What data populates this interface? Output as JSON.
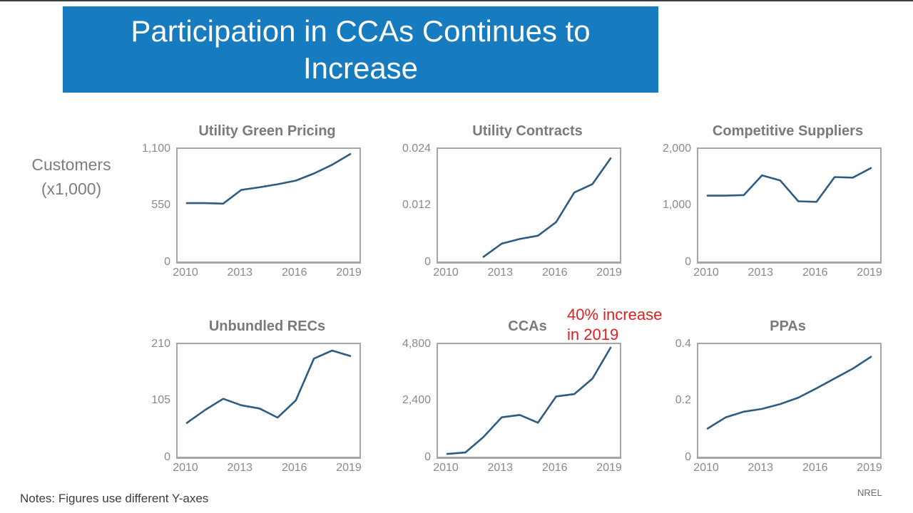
{
  "slide": {
    "title_line1": "Participation in CCAs Continues to",
    "title_line2": "Increase",
    "y_axis_label_line1": "Customers",
    "y_axis_label_line2": "(x1,000)",
    "note": "Notes: Figures use different Y-axes",
    "credit": "NREL"
  },
  "colors": {
    "banner_blue": "#177BC0",
    "series_line": "#2E5C80",
    "annotation_red": "#DE1F1F",
    "chart_title_gray": "#7A7A7A",
    "tick_gray": "#8A8A8A",
    "plot_border_gray": "#A6A6A6"
  },
  "chart_data": [
    {
      "type": "line",
      "title": "Utility Green Pricing",
      "x": [
        2010,
        2011,
        2012,
        2013,
        2014,
        2015,
        2016,
        2017,
        2018,
        2019
      ],
      "values": [
        570,
        570,
        565,
        700,
        725,
        755,
        790,
        860,
        945,
        1050
      ],
      "xlim": [
        2010,
        2019
      ],
      "ylim": [
        0,
        1100
      ],
      "ytick_labels_top_to_bottom": [
        "1,100",
        "550",
        "0"
      ],
      "xtick_labels": [
        "2010",
        "2013",
        "2016",
        "2019"
      ]
    },
    {
      "type": "line",
      "title": "Utility Contracts",
      "x": [
        2012,
        2013,
        2014,
        2015,
        2016,
        2017,
        2018,
        2019
      ],
      "values": [
        0.001,
        0.0038,
        0.0048,
        0.0055,
        0.0084,
        0.0147,
        0.0165,
        0.022
      ],
      "xlim": [
        2010,
        2019
      ],
      "ylim": [
        0,
        0.024
      ],
      "ytick_labels_top_to_bottom": [
        "0.024",
        "0.012",
        "0"
      ],
      "xtick_labels": [
        "2010",
        "2013",
        "2016",
        "2019"
      ]
    },
    {
      "type": "line",
      "title": "Competitive Suppliers",
      "x": [
        2010,
        2011,
        2012,
        2013,
        2014,
        2015,
        2016,
        2017,
        2018,
        2019
      ],
      "values": [
        1170,
        1170,
        1180,
        1530,
        1440,
        1070,
        1060,
        1500,
        1490,
        1660
      ],
      "xlim": [
        2010,
        2019
      ],
      "ylim": [
        0,
        2000
      ],
      "ytick_labels_top_to_bottom": [
        "2,000",
        "1,000",
        "0"
      ],
      "xtick_labels": [
        "2010",
        "2013",
        "2016",
        "2019"
      ]
    },
    {
      "type": "line",
      "title": "Unbundled RECs",
      "x": [
        2010,
        2011,
        2012,
        2013,
        2014,
        2015,
        2016,
        2017,
        2018,
        2019
      ],
      "values": [
        63,
        87,
        108,
        96,
        90,
        73,
        105,
        183,
        198,
        188
      ],
      "xlim": [
        2010,
        2019
      ],
      "ylim": [
        0,
        210
      ],
      "ytick_labels_top_to_bottom": [
        "210",
        "105",
        "0"
      ],
      "xtick_labels": [
        "2010",
        "2013",
        "2016",
        "2019"
      ]
    },
    {
      "type": "line",
      "title": "CCAs",
      "x": [
        2010,
        2011,
        2012,
        2013,
        2014,
        2015,
        2016,
        2017,
        2018,
        2019
      ],
      "values": [
        120,
        180,
        840,
        1680,
        1780,
        1450,
        2570,
        2670,
        3330,
        4650
      ],
      "xlim": [
        2010,
        2019
      ],
      "ylim": [
        0,
        4800
      ],
      "ytick_labels_top_to_bottom": [
        "4,800",
        "2,400",
        "0"
      ],
      "xtick_labels": [
        "2010",
        "2013",
        "2016",
        "2019"
      ],
      "annotation_line1": "40% increase",
      "annotation_line2": "in 2019"
    },
    {
      "type": "line",
      "title": "PPAs",
      "x": [
        2010,
        2011,
        2012,
        2013,
        2014,
        2015,
        2016,
        2017,
        2018,
        2019
      ],
      "values": [
        0.1,
        0.14,
        0.16,
        0.17,
        0.187,
        0.21,
        0.243,
        0.278,
        0.313,
        0.355
      ],
      "xlim": [
        2010,
        2019
      ],
      "ylim": [
        0,
        0.4
      ],
      "ytick_labels_top_to_bottom": [
        "0.4",
        "0.2",
        "0"
      ],
      "xtick_labels": [
        "2010",
        "2013",
        "2016",
        "2019"
      ]
    }
  ]
}
